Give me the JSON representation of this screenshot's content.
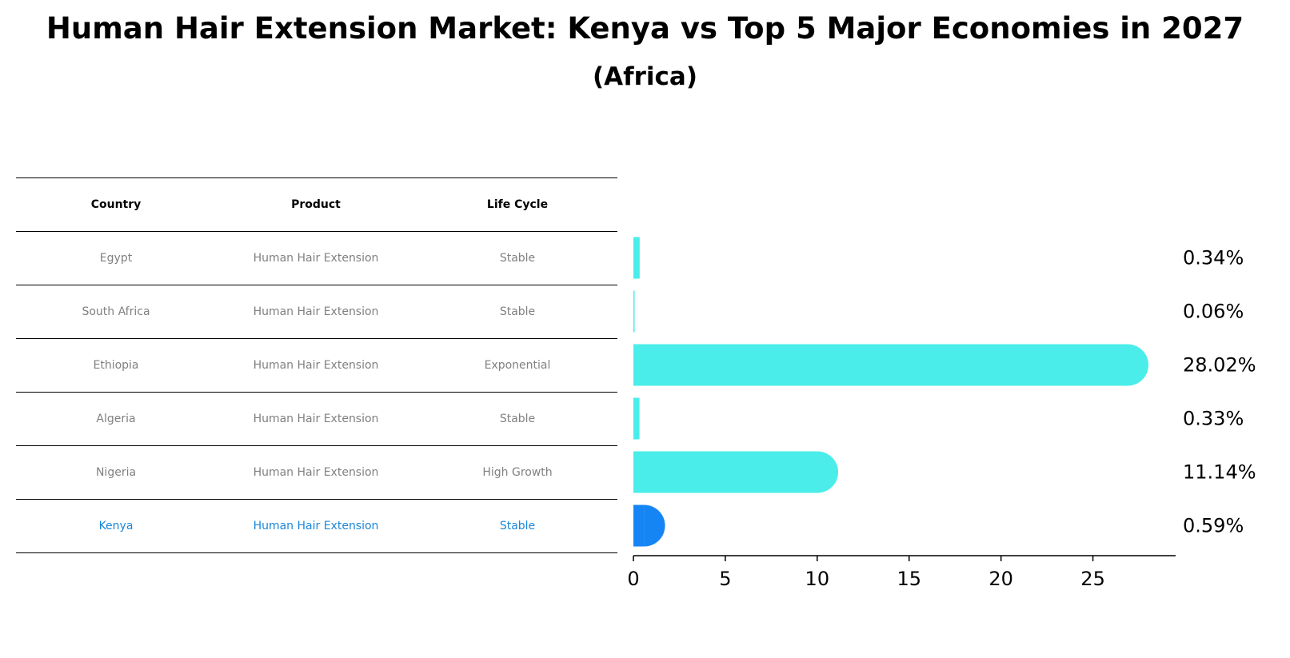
{
  "title": "Human Hair Extension Market: Kenya vs Top 5 Major Economies in 2027",
  "subtitle": "(Africa)",
  "table": {
    "headers": [
      "Country",
      "Product",
      "Life Cycle"
    ],
    "rows": [
      {
        "country": "Egypt",
        "product": "Human Hair Extension",
        "life_cycle": "Stable"
      },
      {
        "country": "South Africa",
        "product": "Human Hair Extension",
        "life_cycle": "Stable"
      },
      {
        "country": "Ethiopia",
        "product": "Human Hair Extension",
        "life_cycle": "Exponential"
      },
      {
        "country": "Algeria",
        "product": "Human Hair Extension",
        "life_cycle": "Stable"
      },
      {
        "country": "Nigeria",
        "product": "Human Hair Extension",
        "life_cycle": "High Growth"
      },
      {
        "country": "Kenya",
        "product": "Human Hair Extension",
        "life_cycle": "Stable"
      }
    ]
  },
  "colors": {
    "bar": "#4aede9",
    "highlight": "#1585f5",
    "highlight_text": "#1a87d9",
    "muted_text": "#808080"
  },
  "chart_data": {
    "type": "bar",
    "orientation": "horizontal",
    "categories": [
      "Egypt",
      "South Africa",
      "Ethiopia",
      "Algeria",
      "Nigeria",
      "Kenya"
    ],
    "values": [
      0.34,
      0.06,
      28.02,
      0.33,
      11.14,
      0.59
    ],
    "value_labels": [
      "0.34%",
      "0.06%",
      "28.02%",
      "0.33%",
      "11.14%",
      "0.59%"
    ],
    "highlight": "Kenya",
    "xlim": [
      0,
      29.5
    ],
    "xticks": [
      0,
      5,
      10,
      15,
      20,
      25
    ],
    "xlabel": "",
    "ylabel": "",
    "grid": false
  }
}
